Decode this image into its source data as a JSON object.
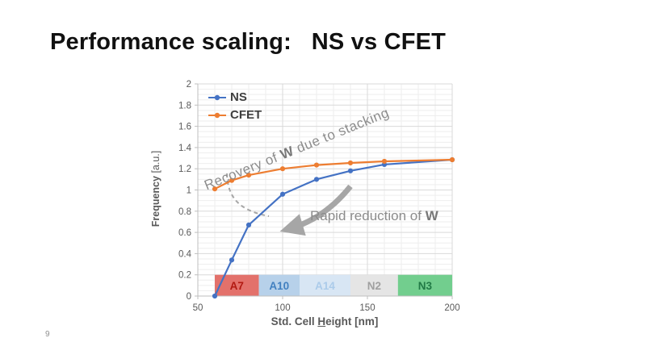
{
  "slide": {
    "title": "Performance scaling:   NS vs CFET",
    "page_number": "9"
  },
  "chart_data": {
    "type": "line",
    "xlabel": {
      "pre": "Std. Cell ",
      "underlined": "H",
      "post": "eight [nm]"
    },
    "ylabel": {
      "bold": "Frequency",
      "unit": " [a.u.]"
    },
    "xlim": [
      50,
      200
    ],
    "ylim": [
      0,
      2
    ],
    "x_ticks": [
      50,
      100,
      150,
      200
    ],
    "y_ticks": [
      0,
      0.2,
      0.4,
      0.6,
      0.8,
      1,
      1.2,
      1.4,
      1.6,
      1.8,
      2
    ],
    "y_tick_labels": [
      "0",
      "0.2",
      "0.4",
      "0.6",
      "0.8",
      "1",
      "1.2",
      "1.4",
      "1.6",
      "1.8",
      "2"
    ],
    "x_minor_step": 10,
    "y_minor_step": 0.05,
    "grid": "major+minor",
    "legend_position": "inside-top-left",
    "x": [
      60,
      70,
      80,
      100,
      120,
      140,
      160,
      200
    ],
    "series": [
      {
        "name": "NS",
        "color": "#4472c4",
        "values": [
          0,
          0.34,
          0.67,
          0.96,
          1.1,
          1.18,
          1.24,
          1.285
        ]
      },
      {
        "name": "CFET",
        "color": "#ed7d31",
        "values": [
          1.01,
          1.09,
          1.14,
          1.2,
          1.235,
          1.255,
          1.27,
          1.285
        ]
      }
    ],
    "bands": [
      {
        "label": "A7",
        "from": 60,
        "to": 86,
        "fill": "#e3716b",
        "text_color": "#b21a12"
      },
      {
        "label": "A10",
        "from": 86,
        "to": 110,
        "fill": "#b7d1ea",
        "text_color": "#4280c0"
      },
      {
        "label": "A14",
        "from": 110,
        "to": 140,
        "fill": "#d8e6f4",
        "text_color": "#abcbea"
      },
      {
        "label": "N2",
        "from": 140,
        "to": 168,
        "fill": "#e5e5e5",
        "text_color": "#a0a0a0"
      },
      {
        "label": "N3",
        "from": 168,
        "to": 200,
        "fill": "#72ce8e",
        "text_color": "#217a46"
      }
    ],
    "band_top": 0.2,
    "annotations": {
      "recovery": {
        "pre": "Recovery of ",
        "bold": "W",
        "post": " due to stacking"
      },
      "rapid": {
        "pre": "Rapid reduction of ",
        "bold": "W"
      }
    },
    "colors": {
      "grid_major": "#d9d9d9",
      "grid_minor": "#eeeeee",
      "axis_line": "#bfbfbf",
      "tick_text": "#595959",
      "annotation_gray": "#8c8c8c",
      "arrow_gray": "#a6a6a6"
    }
  }
}
